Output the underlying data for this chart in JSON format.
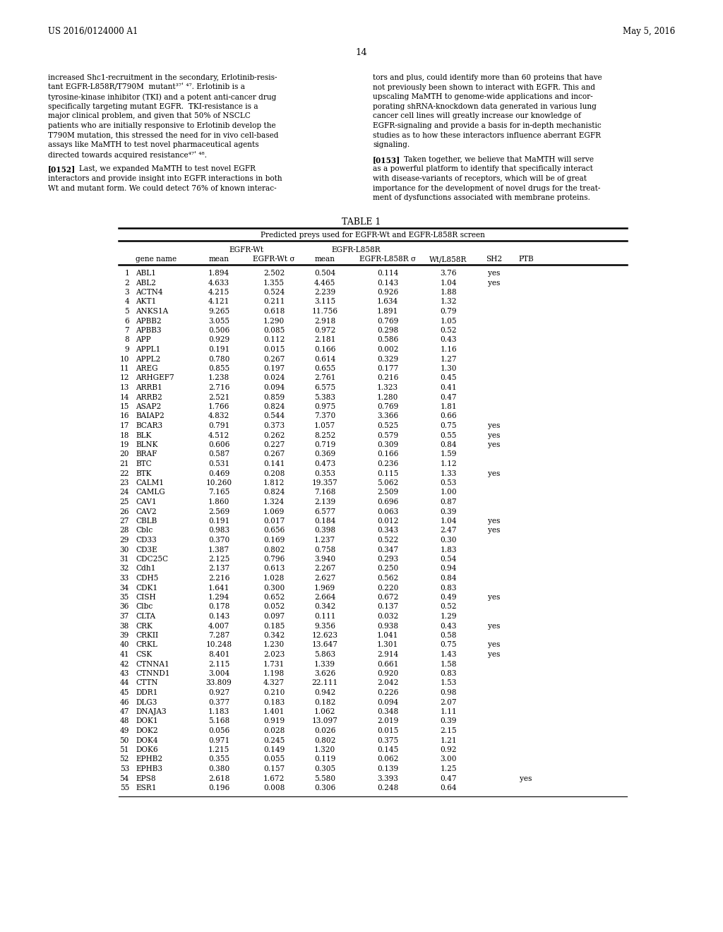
{
  "page_header_left": "US 2016/0124000 A1",
  "page_header_right": "May 5, 2016",
  "page_number": "14",
  "table_title": "TABLE 1",
  "table_subtitle": "Predicted preys used for EGFR-Wt and EGFR-L858R screen",
  "rows": [
    [
      1,
      "ABL1",
      "1.894",
      "2.502",
      "0.504",
      "0.114",
      "3.76",
      "yes",
      ""
    ],
    [
      2,
      "ABL2",
      "4.633",
      "1.355",
      "4.465",
      "0.143",
      "1.04",
      "yes",
      ""
    ],
    [
      3,
      "ACTN4",
      "4.215",
      "0.524",
      "2.239",
      "0.926",
      "1.88",
      "",
      ""
    ],
    [
      4,
      "AKT1",
      "4.121",
      "0.211",
      "3.115",
      "1.634",
      "1.32",
      "",
      ""
    ],
    [
      5,
      "ANKS1A",
      "9.265",
      "0.618",
      "11.756",
      "1.891",
      "0.79",
      "",
      ""
    ],
    [
      6,
      "APBB2",
      "3.055",
      "1.290",
      "2.918",
      "0.769",
      "1.05",
      "",
      ""
    ],
    [
      7,
      "APBB3",
      "0.506",
      "0.085",
      "0.972",
      "0.298",
      "0.52",
      "",
      ""
    ],
    [
      8,
      "APP",
      "0.929",
      "0.112",
      "2.181",
      "0.586",
      "0.43",
      "",
      ""
    ],
    [
      9,
      "APPL1",
      "0.191",
      "0.015",
      "0.166",
      "0.002",
      "1.16",
      "",
      ""
    ],
    [
      10,
      "APPL2",
      "0.780",
      "0.267",
      "0.614",
      "0.329",
      "1.27",
      "",
      ""
    ],
    [
      11,
      "AREG",
      "0.855",
      "0.197",
      "0.655",
      "0.177",
      "1.30",
      "",
      ""
    ],
    [
      12,
      "ARHGEF7",
      "1.238",
      "0.024",
      "2.761",
      "0.216",
      "0.45",
      "",
      ""
    ],
    [
      13,
      "ARRB1",
      "2.716",
      "0.094",
      "6.575",
      "1.323",
      "0.41",
      "",
      ""
    ],
    [
      14,
      "ARRB2",
      "2.521",
      "0.859",
      "5.383",
      "1.280",
      "0.47",
      "",
      ""
    ],
    [
      15,
      "ASAP2",
      "1.766",
      "0.824",
      "0.975",
      "0.769",
      "1.81",
      "",
      ""
    ],
    [
      16,
      "BAIAP2",
      "4.832",
      "0.544",
      "7.370",
      "3.366",
      "0.66",
      "",
      ""
    ],
    [
      17,
      "BCAR3",
      "0.791",
      "0.373",
      "1.057",
      "0.525",
      "0.75",
      "yes",
      ""
    ],
    [
      18,
      "BLK",
      "4.512",
      "0.262",
      "8.252",
      "0.579",
      "0.55",
      "yes",
      ""
    ],
    [
      19,
      "BLNK",
      "0.606",
      "0.227",
      "0.719",
      "0.309",
      "0.84",
      "yes",
      ""
    ],
    [
      20,
      "BRAF",
      "0.587",
      "0.267",
      "0.369",
      "0.166",
      "1.59",
      "",
      ""
    ],
    [
      21,
      "BTC",
      "0.531",
      "0.141",
      "0.473",
      "0.236",
      "1.12",
      "",
      ""
    ],
    [
      22,
      "BTK",
      "0.469",
      "0.208",
      "0.353",
      "0.115",
      "1.33",
      "yes",
      ""
    ],
    [
      23,
      "CALM1",
      "10.260",
      "1.812",
      "19.357",
      "5.062",
      "0.53",
      "",
      ""
    ],
    [
      24,
      "CAMLG",
      "7.165",
      "0.824",
      "7.168",
      "2.509",
      "1.00",
      "",
      ""
    ],
    [
      25,
      "CAV1",
      "1.860",
      "1.324",
      "2.139",
      "0.696",
      "0.87",
      "",
      ""
    ],
    [
      26,
      "CAV2",
      "2.569",
      "1.069",
      "6.577",
      "0.063",
      "0.39",
      "",
      ""
    ],
    [
      27,
      "CBLB",
      "0.191",
      "0.017",
      "0.184",
      "0.012",
      "1.04",
      "yes",
      ""
    ],
    [
      28,
      "Cblc",
      "0.983",
      "0.656",
      "0.398",
      "0.343",
      "2.47",
      "yes",
      ""
    ],
    [
      29,
      "CD33",
      "0.370",
      "0.169",
      "1.237",
      "0.522",
      "0.30",
      "",
      ""
    ],
    [
      30,
      "CD3E",
      "1.387",
      "0.802",
      "0.758",
      "0.347",
      "1.83",
      "",
      ""
    ],
    [
      31,
      "CDC25C",
      "2.125",
      "0.796",
      "3.940",
      "0.293",
      "0.54",
      "",
      ""
    ],
    [
      32,
      "Cdh1",
      "2.137",
      "0.613",
      "2.267",
      "0.250",
      "0.94",
      "",
      ""
    ],
    [
      33,
      "CDH5",
      "2.216",
      "1.028",
      "2.627",
      "0.562",
      "0.84",
      "",
      ""
    ],
    [
      34,
      "CDK1",
      "1.641",
      "0.300",
      "1.969",
      "0.220",
      "0.83",
      "",
      ""
    ],
    [
      35,
      "CISH",
      "1.294",
      "0.652",
      "2.664",
      "0.672",
      "0.49",
      "yes",
      ""
    ],
    [
      36,
      "Clbc",
      "0.178",
      "0.052",
      "0.342",
      "0.137",
      "0.52",
      "",
      ""
    ],
    [
      37,
      "CLTA",
      "0.143",
      "0.097",
      "0.111",
      "0.032",
      "1.29",
      "",
      ""
    ],
    [
      38,
      "CRK",
      "4.007",
      "0.185",
      "9.356",
      "0.938",
      "0.43",
      "yes",
      ""
    ],
    [
      39,
      "CRKII",
      "7.287",
      "0.342",
      "12.623",
      "1.041",
      "0.58",
      "",
      ""
    ],
    [
      40,
      "CRKL",
      "10.248",
      "1.230",
      "13.647",
      "1.301",
      "0.75",
      "yes",
      ""
    ],
    [
      41,
      "CSK",
      "8.401",
      "2.023",
      "5.863",
      "2.914",
      "1.43",
      "yes",
      ""
    ],
    [
      42,
      "CTNNA1",
      "2.115",
      "1.731",
      "1.339",
      "0.661",
      "1.58",
      "",
      ""
    ],
    [
      43,
      "CTNND1",
      "3.004",
      "1.198",
      "3.626",
      "0.920",
      "0.83",
      "",
      ""
    ],
    [
      44,
      "CTTN",
      "33.809",
      "4.327",
      "22.111",
      "2.042",
      "1.53",
      "",
      ""
    ],
    [
      45,
      "DDR1",
      "0.927",
      "0.210",
      "0.942",
      "0.226",
      "0.98",
      "",
      ""
    ],
    [
      46,
      "DLG3",
      "0.377",
      "0.183",
      "0.182",
      "0.094",
      "2.07",
      "",
      ""
    ],
    [
      47,
      "DNAJA3",
      "1.183",
      "1.401",
      "1.062",
      "0.348",
      "1.11",
      "",
      ""
    ],
    [
      48,
      "DOK1",
      "5.168",
      "0.919",
      "13.097",
      "2.019",
      "0.39",
      "",
      ""
    ],
    [
      49,
      "DOK2",
      "0.056",
      "0.028",
      "0.026",
      "0.015",
      "2.15",
      "",
      ""
    ],
    [
      50,
      "DOK4",
      "0.971",
      "0.245",
      "0.802",
      "0.375",
      "1.21",
      "",
      ""
    ],
    [
      51,
      "DOK6",
      "1.215",
      "0.149",
      "1.320",
      "0.145",
      "0.92",
      "",
      ""
    ],
    [
      52,
      "EPHB2",
      "0.355",
      "0.055",
      "0.119",
      "0.062",
      "3.00",
      "",
      ""
    ],
    [
      53,
      "EPHB3",
      "0.380",
      "0.157",
      "0.305",
      "0.139",
      "1.25",
      "",
      ""
    ],
    [
      54,
      "EPS8",
      "2.618",
      "1.672",
      "5.580",
      "3.393",
      "0.47",
      "",
      "yes"
    ],
    [
      55,
      "ESR1",
      "0.196",
      "0.008",
      "0.306",
      "0.248",
      "0.64",
      "",
      ""
    ]
  ],
  "left_col_lines": [
    "increased Shc1-recruitment in the secondary, Erlotinib-resis-",
    "tant EGFR-L858R/T790M  mutant³⁷ʹ ⁴⁷. Erlotinib is a",
    "tyrosine-kinase inhibitor (TKI) and a potent anti-cancer drug",
    "specifically targeting mutant EGFR.  TKI-resistance is a",
    "major clinical problem, and given that 50% of NSCLC",
    "patients who are initially responsive to Erlotinib develop the",
    "T790M mutation, this stressed the need for in vivo cell-based",
    "assays like MaMTH to test novel pharmaceutical agents",
    "directed towards acquired resistance⁴⁷ʹ ⁴⁸."
  ],
  "left_col_152": [
    "[0152]",
    "Last, we expanded MaMTH to test novel EGFR",
    "interactors and provide insight into EGFR interactions in both",
    "Wt and mutant form. We could detect 76% of known interac-"
  ],
  "right_col_lines": [
    "tors and plus, could identify more than 60 proteins that have",
    "not previously been shown to interact with EGFR. This and",
    "upscaling MaMTH to genome-wide applications and incor-",
    "porating shRNA-knockdown data generated in various lung",
    "cancer cell lines will greatly increase our knowledge of",
    "EGFR-signaling and provide a basis for in-depth mechanistic",
    "studies as to how these interactors influence aberrant EGFR",
    "signaling."
  ],
  "right_col_153": [
    "[0153]",
    "Taken together, we believe that MaMTH will serve",
    "as a powerful platform to identify that specifically interact",
    "with disease-variants of receptors, which will be of great",
    "importance for the development of novel drugs for the treat-",
    "ment of dysfunctions associated with membrane proteins."
  ]
}
